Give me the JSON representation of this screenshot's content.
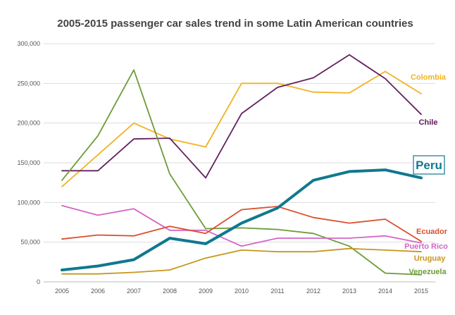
{
  "chart_data": {
    "type": "line",
    "title": "2005-2015 passenger car sales trend in some Latin American countries",
    "xlabel": "",
    "ylabel": "",
    "x": [
      "2005",
      "2006",
      "2007",
      "2008",
      "2009",
      "2010",
      "2011",
      "2012",
      "2013",
      "2014",
      "2015"
    ],
    "ylim": [
      0,
      300000
    ],
    "yticks": [
      0,
      50000,
      100000,
      150000,
      200000,
      250000,
      300000
    ],
    "ytick_labels": [
      "0",
      "50,000",
      "100,000",
      "150,000",
      "200,000",
      "250,000",
      "300,000"
    ],
    "grid": "horizontal",
    "legend": "inline labels at right end of each line",
    "series": [
      {
        "name": "Colombia",
        "color": "#F0B323",
        "emphasis": false,
        "values": [
          120000,
          160000,
          200000,
          180000,
          170000,
          250000,
          250000,
          239000,
          238000,
          265000,
          237000
        ]
      },
      {
        "name": "Chile",
        "color": "#63215F",
        "emphasis": false,
        "values": [
          140000,
          140000,
          180000,
          181000,
          131000,
          212000,
          245000,
          257000,
          286000,
          256000,
          211000
        ]
      },
      {
        "name": "Venezuela",
        "color": "#6E9B3A",
        "emphasis": false,
        "values": [
          128000,
          184000,
          267000,
          136000,
          67000,
          68000,
          66000,
          61000,
          45000,
          11000,
          9000
        ]
      },
      {
        "name": "Puerto Rico",
        "color": "#D465C7",
        "emphasis": false,
        "values": [
          96000,
          84000,
          92000,
          65000,
          65000,
          45000,
          55000,
          55000,
          55000,
          58000,
          49000
        ]
      },
      {
        "name": "Ecuador",
        "color": "#D9502F",
        "emphasis": false,
        "values": [
          54000,
          59000,
          58000,
          70000,
          61000,
          91000,
          95000,
          81000,
          74000,
          79000,
          51000
        ]
      },
      {
        "name": "Uruguay",
        "color": "#C8961C",
        "emphasis": false,
        "values": [
          10000,
          10000,
          12000,
          15000,
          30000,
          40000,
          38000,
          38000,
          42000,
          40000,
          38000
        ]
      },
      {
        "name": "Peru",
        "color": "#10788F",
        "emphasis": true,
        "values": [
          15000,
          20000,
          28000,
          55000,
          48000,
          74000,
          93000,
          128000,
          139000,
          141000,
          131000
        ]
      }
    ]
  }
}
